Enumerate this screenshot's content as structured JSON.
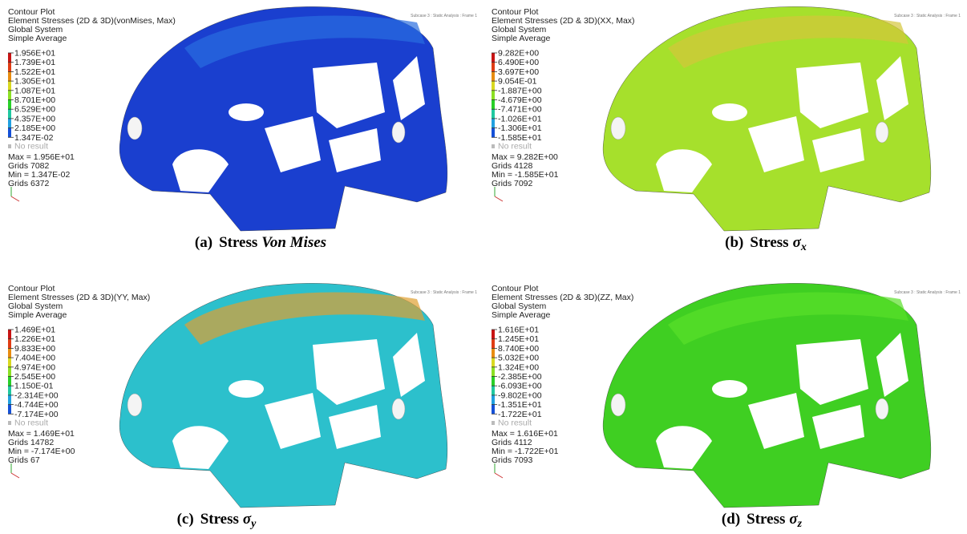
{
  "panels": [
    {
      "title": "Contour Plot",
      "result": "Element Stresses (2D & 3D)(vonMises, Max)",
      "system": "Global System",
      "averaging": "Simple Average",
      "subcase": "Subcase 3 : Static Analysis : Frame 1",
      "legend": [
        "1.956E+01",
        "1.739E+01",
        "1.522E+01",
        "1.305E+01",
        "1.087E+01",
        "8.701E+00",
        "6.529E+00",
        "4.357E+00",
        "2.185E+00",
        "1.347E-02"
      ],
      "no_result": "No result",
      "max": "Max = 1.956E+01",
      "max_grids": "Grids 7082",
      "min": "Min = 1.347E-02",
      "min_grids": "Grids 6372",
      "caption": {
        "label": "(a)",
        "text": "Stress",
        "emphasis": "Von Mises"
      }
    },
    {
      "title": "Contour Plot",
      "result": "Element Stresses (2D & 3D)(XX, Max)",
      "system": "Global System",
      "averaging": "Simple Average",
      "subcase": "Subcase 3 : Static Analysis : Frame 1",
      "legend": [
        "9.282E+00",
        "6.490E+00",
        "3.697E+00",
        "9.054E-01",
        "-1.887E+00",
        "-4.679E+00",
        "-7.471E+00",
        "-1.026E+01",
        "-1.306E+01",
        "-1.585E+01"
      ],
      "no_result": "No result",
      "max": "Max = 9.282E+00",
      "max_grids": "Grids 4128",
      "min": "Min = -1.585E+01",
      "min_grids": "Grids 7092",
      "caption": {
        "label": "(b)",
        "text": "Stress",
        "symbol": "σ",
        "subscript": "x"
      }
    },
    {
      "title": "Contour Plot",
      "result": "Element Stresses (2D & 3D)(YY, Max)",
      "system": "Global System",
      "averaging": "Simple Average",
      "subcase": "Subcase 3 : Static Analysis : Frame 1",
      "legend": [
        "1.469E+01",
        "1.226E+01",
        "9.833E+00",
        "7.404E+00",
        "4.974E+00",
        "2.545E+00",
        "1.150E-01",
        "-2.314E+00",
        "-4.744E+00",
        "-7.174E+00"
      ],
      "no_result": "No result",
      "max": "Max = 1.469E+01",
      "max_grids": "Grids 14782",
      "min": "Min = -7.174E+00",
      "min_grids": "Grids 67",
      "caption": {
        "label": "(c)",
        "text": "Stress",
        "symbol": "σ",
        "subscript": "y"
      }
    },
    {
      "title": "Contour Plot",
      "result": "Element Stresses (2D & 3D)(ZZ, Max)",
      "system": "Global System",
      "averaging": "Simple Average",
      "subcase": "Subcase 3 : Static Analysis : Frame 1",
      "legend": [
        "1.616E+01",
        "1.245E+01",
        "8.740E+00",
        "5.032E+00",
        "1.324E+00",
        "-2.385E+00",
        "-6.093E+00",
        "-9.802E+00",
        "-1.351E+01",
        "-1.722E+01"
      ],
      "no_result": "No result",
      "max": "Max = 1.616E+01",
      "max_grids": "Grids 4112",
      "min": "Min = -1.722E+01",
      "min_grids": "Grids 7093",
      "caption": {
        "label": "(d)",
        "text": "Stress",
        "symbol": "σ",
        "subscript": "z"
      }
    }
  ]
}
